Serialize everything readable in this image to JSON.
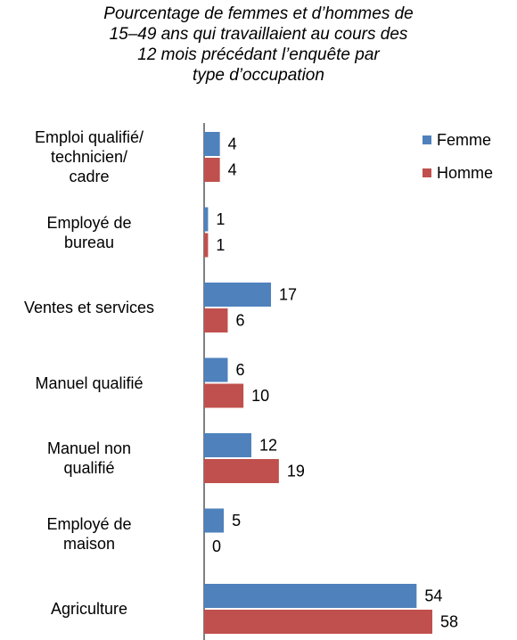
{
  "chart_data": {
    "type": "bar",
    "orientation": "horizontal",
    "title": "Pourcentage de femmes et d’hommes de\n15–49 ans qui travaillaient au cours des\n12 mois précédant l’enquête par\ntype d’occupation",
    "categories": [
      "Emploi qualifié/\ntechnicien/\ncadre",
      "Employé de\nbureau",
      "Ventes et services",
      "Manuel qualifié",
      "Manuel non\nqualifié",
      "Employé de\nmaison",
      "Agriculture"
    ],
    "series": [
      {
        "name": "Femme",
        "color": "#4f81bd",
        "values": [
          4,
          1,
          17,
          6,
          12,
          5,
          54
        ]
      },
      {
        "name": "Homme",
        "color": "#c0504d",
        "values": [
          4,
          1,
          6,
          10,
          19,
          0,
          58
        ]
      }
    ],
    "legend": "top-right"
  }
}
